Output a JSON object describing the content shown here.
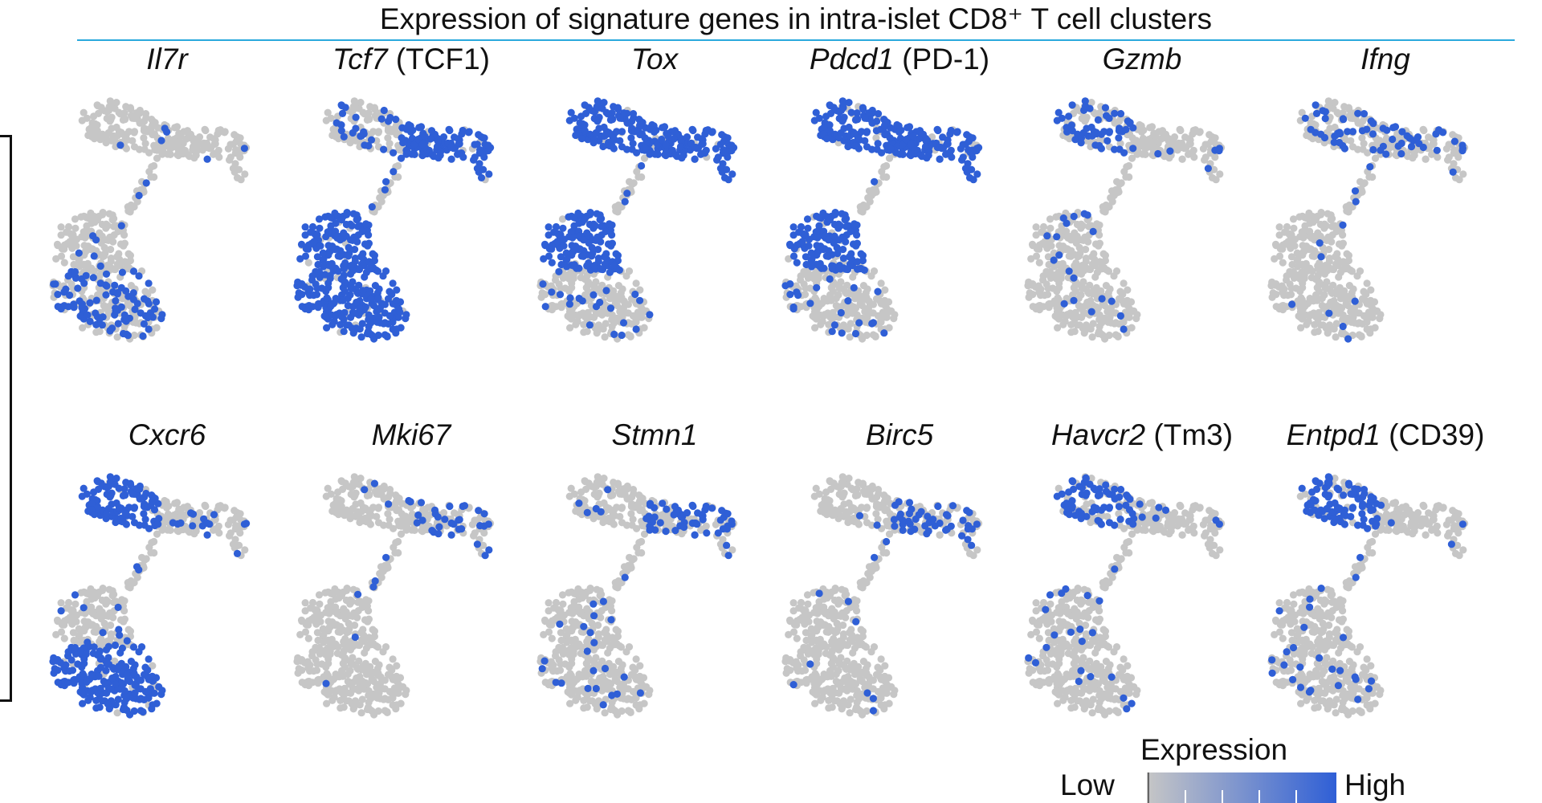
{
  "chart_data": {
    "type": "scatter",
    "title": "Expression of signature genes in intra-islet CD8⁺ T cell clusters",
    "colors": {
      "low": "#c6c6c6",
      "high": "#2f5fd6",
      "title_rule": "#2aa9dd"
    },
    "legend": {
      "title": "Expression",
      "low_label": "Low",
      "high_label": "High",
      "placement": "bottom-right"
    },
    "panels": [
      {
        "gene": "Il7r",
        "protein": "",
        "expressed_fraction": 0.16,
        "high_clusters": [
          "lower-bottom"
        ]
      },
      {
        "gene": "Tcf7",
        "protein": "(TCF1)",
        "expressed_fraction": 0.68,
        "high_clusters": [
          "lower",
          "upper-right"
        ]
      },
      {
        "gene": "Tox",
        "protein": "",
        "expressed_fraction": 0.45,
        "high_clusters": [
          "upper",
          "lower-top"
        ]
      },
      {
        "gene": "Pdcd1",
        "protein": "(PD-1)",
        "expressed_fraction": 0.33,
        "high_clusters": [
          "upper",
          "lower-top"
        ]
      },
      {
        "gene": "Gzmb",
        "protein": "",
        "expressed_fraction": 0.16,
        "high_clusters": [
          "upper-left"
        ]
      },
      {
        "gene": "Ifng",
        "protein": "",
        "expressed_fraction": 0.1,
        "high_clusters": [
          "upper"
        ]
      },
      {
        "gene": "Cxcr6",
        "protein": "",
        "expressed_fraction": 0.35,
        "high_clusters": [
          "upper-left",
          "lower-bottom"
        ]
      },
      {
        "gene": "Mki67",
        "protein": "",
        "expressed_fraction": 0.1,
        "high_clusters": [
          "upper-right"
        ]
      },
      {
        "gene": "Stmn1",
        "protein": "",
        "expressed_fraction": 0.2,
        "high_clusters": [
          "upper-right"
        ]
      },
      {
        "gene": "Birc5",
        "protein": "",
        "expressed_fraction": 0.13,
        "high_clusters": [
          "upper-right"
        ]
      },
      {
        "gene": "Havcr2",
        "protein": "(Tm3)",
        "expressed_fraction": 0.22,
        "high_clusters": [
          "upper-left"
        ]
      },
      {
        "gene": "Entpd1",
        "protein": "(CD39)",
        "expressed_fraction": 0.28,
        "high_clusters": [
          "upper-left"
        ]
      }
    ]
  }
}
